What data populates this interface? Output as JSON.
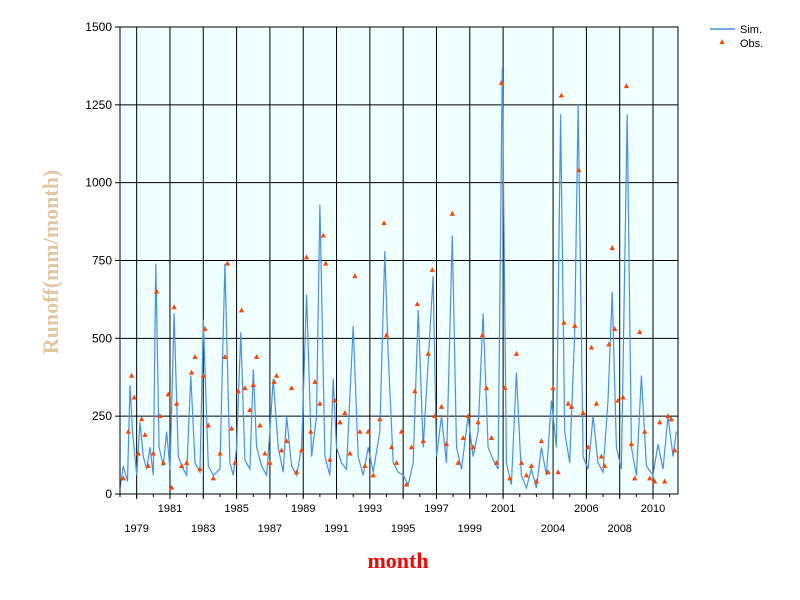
{
  "chart_data": {
    "type": "line",
    "title": "",
    "xlabel": "month",
    "ylabel": "Runoff(mm/month)",
    "xlim": [
      1978,
      2011.5
    ],
    "ylim": [
      0,
      1500
    ],
    "yticks": [
      0,
      250,
      500,
      750,
      1000,
      1250,
      1500
    ],
    "ytick_labels": [
      "0",
      "250",
      "500",
      "750",
      "1000",
      "1250",
      "1500"
    ],
    "xticks_upper": [
      1981,
      1985,
      1989,
      1993,
      1997,
      2001,
      2006,
      2010
    ],
    "xticks_upper_labels": [
      "1981",
      "1985",
      "1989",
      "1993",
      "1997",
      "2001",
      "2006",
      "2010"
    ],
    "xticks_lower": [
      1979,
      1983,
      1987,
      1991,
      1995,
      1999,
      2004,
      2008
    ],
    "xticks_lower_labels": [
      "1979",
      "1983",
      "1987",
      "1991",
      "1995",
      "1999",
      "2004",
      "2008"
    ],
    "grid": true,
    "legend_position": "top-right",
    "plot_background": "#f0ffff",
    "xlabel_color": "#ff0000",
    "ylabel_color": "#e2c8a0",
    "series": [
      {
        "name": "Sim.",
        "mark": "line",
        "color": "#4a90e2",
        "points": [
          [
            1978.0,
            20
          ],
          [
            1978.2,
            90
          ],
          [
            1978.45,
            40
          ],
          [
            1978.6,
            350
          ],
          [
            1978.75,
            200
          ],
          [
            1979.0,
            60
          ],
          [
            1979.2,
            230
          ],
          [
            1979.4,
            120
          ],
          [
            1979.6,
            80
          ],
          [
            1979.8,
            150
          ],
          [
            1980.0,
            60
          ],
          [
            1980.15,
            740
          ],
          [
            1980.35,
            150
          ],
          [
            1980.6,
            90
          ],
          [
            1980.8,
            200
          ],
          [
            1981.0,
            80
          ],
          [
            1981.25,
            580
          ],
          [
            1981.5,
            120
          ],
          [
            1981.8,
            80
          ],
          [
            1982.0,
            60
          ],
          [
            1982.25,
            380
          ],
          [
            1982.5,
            100
          ],
          [
            1982.8,
            70
          ],
          [
            1983.0,
            560
          ],
          [
            1983.3,
            90
          ],
          [
            1983.6,
            60
          ],
          [
            1984.0,
            80
          ],
          [
            1984.3,
            740
          ],
          [
            1984.6,
            100
          ],
          [
            1984.8,
            60
          ],
          [
            1985.0,
            150
          ],
          [
            1985.25,
            520
          ],
          [
            1985.5,
            110
          ],
          [
            1985.8,
            80
          ],
          [
            1986.0,
            400
          ],
          [
            1986.2,
            150
          ],
          [
            1986.5,
            90
          ],
          [
            1986.8,
            60
          ],
          [
            1987.0,
            200
          ],
          [
            1987.2,
            370
          ],
          [
            1987.5,
            150
          ],
          [
            1987.8,
            70
          ],
          [
            1988.0,
            250
          ],
          [
            1988.3,
            90
          ],
          [
            1988.6,
            60
          ],
          [
            1988.9,
            150
          ],
          [
            1989.2,
            640
          ],
          [
            1989.5,
            120
          ],
          [
            1989.8,
            250
          ],
          [
            1990.0,
            930
          ],
          [
            1990.3,
            120
          ],
          [
            1990.6,
            60
          ],
          [
            1990.8,
            370
          ],
          [
            1991.0,
            150
          ],
          [
            1991.3,
            100
          ],
          [
            1991.6,
            80
          ],
          [
            1992.0,
            540
          ],
          [
            1992.3,
            120
          ],
          [
            1992.6,
            60
          ],
          [
            1992.9,
            150
          ],
          [
            1993.2,
            70
          ],
          [
            1993.6,
            200
          ],
          [
            1993.9,
            780
          ],
          [
            1994.1,
            450
          ],
          [
            1994.4,
            100
          ],
          [
            1994.7,
            70
          ],
          [
            1995.0,
            60
          ],
          [
            1995.3,
            30
          ],
          [
            1995.6,
            100
          ],
          [
            1995.9,
            590
          ],
          [
            1996.2,
            150
          ],
          [
            1996.5,
            420
          ],
          [
            1996.8,
            700
          ],
          [
            1997.0,
            120
          ],
          [
            1997.3,
            250
          ],
          [
            1997.6,
            100
          ],
          [
            1997.95,
            830
          ],
          [
            1998.2,
            150
          ],
          [
            1998.5,
            80
          ],
          [
            1998.9,
            250
          ],
          [
            1999.2,
            120
          ],
          [
            1999.5,
            200
          ],
          [
            1999.8,
            580
          ],
          [
            2000.1,
            150
          ],
          [
            2000.4,
            110
          ],
          [
            2000.7,
            80
          ],
          [
            2000.95,
            1370
          ],
          [
            2001.2,
            100
          ],
          [
            2001.5,
            30
          ],
          [
            2001.8,
            390
          ],
          [
            2002.1,
            60
          ],
          [
            2002.4,
            20
          ],
          [
            2002.7,
            80
          ],
          [
            2003.0,
            20
          ],
          [
            2003.3,
            150
          ],
          [
            2003.6,
            60
          ],
          [
            2003.9,
            300
          ],
          [
            2004.2,
            150
          ],
          [
            2004.45,
            1220
          ],
          [
            2004.7,
            200
          ],
          [
            2005.0,
            100
          ],
          [
            2005.3,
            520
          ],
          [
            2005.5,
            1250
          ],
          [
            2005.8,
            120
          ],
          [
            2006.1,
            80
          ],
          [
            2006.4,
            250
          ],
          [
            2006.7,
            100
          ],
          [
            2007.0,
            70
          ],
          [
            2007.3,
            300
          ],
          [
            2007.55,
            650
          ],
          [
            2007.8,
            150
          ],
          [
            2008.1,
            80
          ],
          [
            2008.45,
            1220
          ],
          [
            2008.7,
            150
          ],
          [
            2009.0,
            60
          ],
          [
            2009.3,
            380
          ],
          [
            2009.6,
            90
          ],
          [
            2010.0,
            60
          ],
          [
            2010.3,
            160
          ],
          [
            2010.6,
            80
          ],
          [
            2010.9,
            250
          ],
          [
            2011.2,
            120
          ],
          [
            2011.4,
            200
          ]
        ]
      },
      {
        "name": "Obs.",
        "mark": "triangle",
        "color": "#ff4500",
        "points": [
          [
            1978.2,
            50
          ],
          [
            1978.5,
            200
          ],
          [
            1978.7,
            380
          ],
          [
            1978.85,
            310
          ],
          [
            1979.1,
            130
          ],
          [
            1979.3,
            240
          ],
          [
            1979.5,
            190
          ],
          [
            1979.7,
            90
          ],
          [
            1980.0,
            130
          ],
          [
            1980.2,
            650
          ],
          [
            1980.4,
            250
          ],
          [
            1980.6,
            100
          ],
          [
            1980.9,
            320
          ],
          [
            1981.1,
            20
          ],
          [
            1981.25,
            600
          ],
          [
            1981.4,
            290
          ],
          [
            1981.7,
            90
          ],
          [
            1982.0,
            100
          ],
          [
            1982.3,
            390
          ],
          [
            1982.5,
            440
          ],
          [
            1982.8,
            80
          ],
          [
            1983.0,
            380
          ],
          [
            1983.1,
            530
          ],
          [
            1983.3,
            220
          ],
          [
            1983.6,
            50
          ],
          [
            1984.0,
            130
          ],
          [
            1984.3,
            440
          ],
          [
            1984.45,
            740
          ],
          [
            1984.7,
            210
          ],
          [
            1984.9,
            100
          ],
          [
            1985.1,
            330
          ],
          [
            1985.3,
            590
          ],
          [
            1985.5,
            340
          ],
          [
            1985.8,
            270
          ],
          [
            1986.0,
            350
          ],
          [
            1986.2,
            440
          ],
          [
            1986.4,
            220
          ],
          [
            1986.7,
            130
          ],
          [
            1987.0,
            100
          ],
          [
            1987.25,
            360
          ],
          [
            1987.4,
            380
          ],
          [
            1987.7,
            140
          ],
          [
            1988.0,
            170
          ],
          [
            1988.3,
            340
          ],
          [
            1988.6,
            70
          ],
          [
            1988.9,
            140
          ],
          [
            1989.2,
            760
          ],
          [
            1989.45,
            200
          ],
          [
            1989.7,
            360
          ],
          [
            1990.0,
            290
          ],
          [
            1990.2,
            830
          ],
          [
            1990.35,
            740
          ],
          [
            1990.6,
            110
          ],
          [
            1990.9,
            300
          ],
          [
            1991.2,
            230
          ],
          [
            1991.5,
            260
          ],
          [
            1991.8,
            130
          ],
          [
            1992.1,
            700
          ],
          [
            1992.4,
            200
          ],
          [
            1992.7,
            90
          ],
          [
            1992.9,
            200
          ],
          [
            1993.2,
            60
          ],
          [
            1993.6,
            240
          ],
          [
            1993.85,
            870
          ],
          [
            1994.0,
            510
          ],
          [
            1994.3,
            150
          ],
          [
            1994.6,
            100
          ],
          [
            1994.9,
            200
          ],
          [
            1995.2,
            30
          ],
          [
            1995.5,
            150
          ],
          [
            1995.7,
            330
          ],
          [
            1995.85,
            610
          ],
          [
            1996.2,
            170
          ],
          [
            1996.5,
            450
          ],
          [
            1996.75,
            720
          ],
          [
            1996.9,
            250
          ],
          [
            1997.3,
            280
          ],
          [
            1997.6,
            160
          ],
          [
            1997.95,
            900
          ],
          [
            1998.3,
            100
          ],
          [
            1998.6,
            180
          ],
          [
            1998.9,
            250
          ],
          [
            1999.2,
            150
          ],
          [
            1999.5,
            230
          ],
          [
            1999.75,
            510
          ],
          [
            2000.0,
            340
          ],
          [
            2000.3,
            180
          ],
          [
            2000.6,
            100
          ],
          [
            2000.9,
            1320
          ],
          [
            2001.1,
            340
          ],
          [
            2001.4,
            50
          ],
          [
            2001.8,
            450
          ],
          [
            2002.1,
            100
          ],
          [
            2002.4,
            60
          ],
          [
            2002.7,
            90
          ],
          [
            2003.0,
            40
          ],
          [
            2003.3,
            170
          ],
          [
            2003.7,
            70
          ],
          [
            2004.0,
            340
          ],
          [
            2004.3,
            70
          ],
          [
            2004.5,
            1280
          ],
          [
            2004.65,
            550
          ],
          [
            2004.9,
            290
          ],
          [
            2005.1,
            280
          ],
          [
            2005.3,
            540
          ],
          [
            2005.55,
            1040
          ],
          [
            2005.8,
            260
          ],
          [
            2006.1,
            150
          ],
          [
            2006.3,
            470
          ],
          [
            2006.6,
            290
          ],
          [
            2006.9,
            120
          ],
          [
            2007.1,
            90
          ],
          [
            2007.35,
            480
          ],
          [
            2007.55,
            790
          ],
          [
            2007.7,
            530
          ],
          [
            2007.9,
            300
          ],
          [
            2008.2,
            310
          ],
          [
            2008.4,
            1310
          ],
          [
            2008.7,
            160
          ],
          [
            2008.9,
            50
          ],
          [
            2009.2,
            520
          ],
          [
            2009.5,
            200
          ],
          [
            2009.8,
            50
          ],
          [
            2010.1,
            40
          ],
          [
            2010.4,
            230
          ],
          [
            2010.7,
            40
          ],
          [
            2010.9,
            250
          ],
          [
            2011.1,
            240
          ],
          [
            2011.3,
            140
          ]
        ]
      }
    ]
  }
}
